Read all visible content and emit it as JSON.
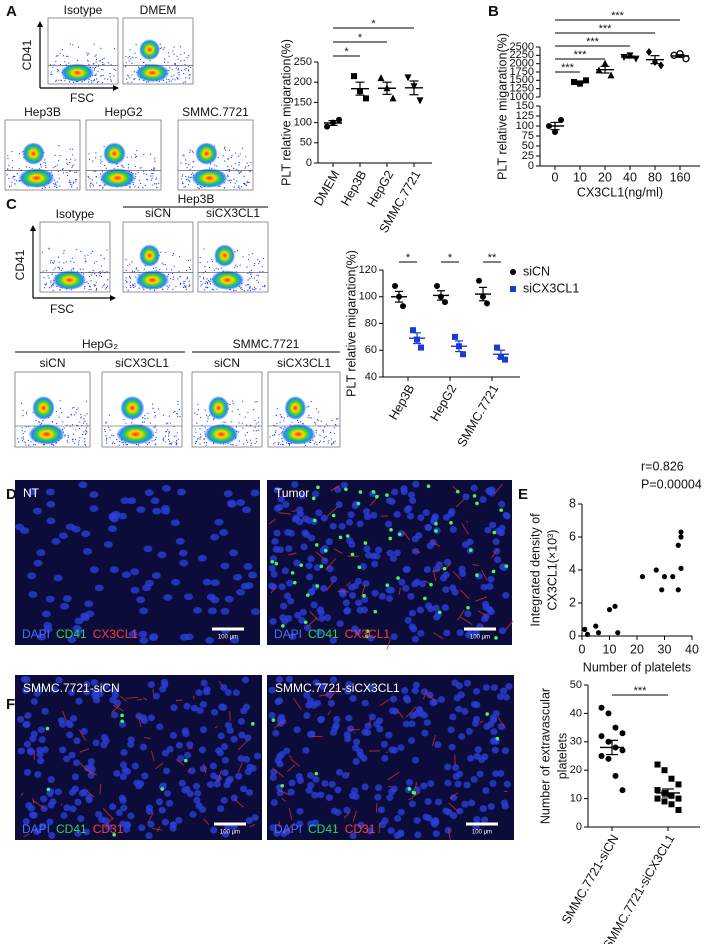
{
  "panel_labels": [
    "A",
    "B",
    "C",
    "D",
    "E",
    "F"
  ],
  "flow_a": {
    "y_axis": "CD41",
    "x_axis": "FSC",
    "plots": [
      "Isotype",
      "DMEM",
      "Hep3B",
      "HepG2",
      "SMMC.7721"
    ]
  },
  "flow_c": {
    "y_axis": "CD41",
    "x_axis": "FSC",
    "isotype": "Isotype",
    "groups": [
      {
        "name": "Hep3B",
        "plots": [
          "siCN",
          "siCX3CL1"
        ]
      },
      {
        "name": "HepG₂",
        "plots": [
          "siCN",
          "siCX3CL1"
        ]
      },
      {
        "name": "SMMC.7721",
        "plots": [
          "siCN",
          "siCX3CL1"
        ]
      }
    ]
  },
  "images_d": {
    "panels": [
      "NT",
      "Tumor"
    ],
    "stains": [
      "DAPI",
      "CD41",
      "CX3CL1"
    ],
    "scale_bar": "100 μm"
  },
  "images_f": {
    "panels": [
      "SMMC.7721-siCN",
      "SMMC.7721-siCX3CL1"
    ],
    "stains": [
      "DAPI",
      "CD41",
      "CD31"
    ],
    "scale_bar": "100 μm"
  },
  "chart_data": [
    {
      "type": "dot",
      "ylabel": "PLT relative migaration(%)",
      "categories": [
        "DMEM",
        "Hep3B",
        "HepG2",
        "SMMC.7721"
      ],
      "markers": [
        "circle",
        "square",
        "triangle",
        "triangle-down"
      ],
      "color": "#000000",
      "points": [
        [
          90,
          100,
          107
        ],
        [
          215,
          178,
          160
        ],
        [
          210,
          185,
          160
        ],
        [
          212,
          190,
          155
        ]
      ],
      "means": [
        99,
        184,
        185,
        186
      ],
      "errors": [
        6,
        16,
        15,
        17
      ],
      "ylim": [
        0,
        250
      ],
      "yticks": [
        0,
        50,
        100,
        150,
        200,
        250
      ],
      "significance": [
        "*",
        "*",
        "*"
      ]
    },
    {
      "type": "dot",
      "ylabel": "PLT relative migaration(%)",
      "xlabel": "CX3CL1(ng/ml)",
      "categories": [
        "0",
        "10",
        "20",
        "40",
        "80",
        "160"
      ],
      "markers": [
        "circle",
        "square",
        "triangle",
        "triangle-down",
        "diamond",
        "circle-open"
      ],
      "color": "#000000",
      "points": [
        [
          100,
          85,
          115
        ],
        [
          1450,
          1400,
          1500
        ],
        [
          1800,
          2000,
          1650
        ],
        [
          2200,
          2250,
          2150
        ],
        [
          2350,
          2050,
          1950
        ],
        [
          2250,
          2300,
          2150
        ]
      ],
      "means": [
        100,
        1450,
        1820,
        2200,
        2120,
        2230
      ],
      "errors": [
        9,
        30,
        100,
        30,
        120,
        40
      ],
      "ylim": [
        0,
        2500
      ],
      "ybreak": [
        150,
        1000
      ],
      "yticks": [
        0,
        25,
        50,
        75,
        100,
        125,
        150,
        1000,
        1250,
        1500,
        1750,
        2000,
        2250,
        2500
      ],
      "significance": [
        "***",
        "***",
        "***",
        "***",
        "***"
      ]
    },
    {
      "type": "grouped-dot",
      "ylabel": "PLT relative migaration(%)",
      "categories": [
        "Hep3B",
        "HepG2",
        "SMMC.7721"
      ],
      "series": [
        {
          "name": "siCN",
          "color": "#000000",
          "marker": "circle",
          "points": [
            [
              108,
              100,
              93
            ],
            [
              108,
              100,
              96
            ],
            [
              112,
              100,
              95
            ]
          ],
          "means": [
            100,
            101,
            102
          ],
          "errors": [
            4,
            3.5,
            5
          ]
        },
        {
          "name": "siCX3CL1",
          "color": "#1a3ad6",
          "marker": "square",
          "points": [
            [
              75,
              68,
              62
            ],
            [
              70,
              63,
              57
            ],
            [
              62,
              55,
              53
            ]
          ],
          "means": [
            69,
            63,
            57
          ],
          "errors": [
            4,
            4,
            3
          ]
        }
      ],
      "ylim": [
        40,
        120
      ],
      "yticks": [
        40,
        60,
        80,
        100,
        120
      ],
      "significance": [
        "*",
        "*",
        "**"
      ]
    },
    {
      "type": "scatter",
      "ylabel": [
        "Integrated density of",
        "CX3CL1(×10³)"
      ],
      "xlabel": "Number of platelets",
      "x": [
        1,
        2,
        5,
        6,
        10,
        12,
        13,
        22,
        27,
        29,
        30,
        33,
        35,
        35,
        36,
        36,
        36
      ],
      "y": [
        0.4,
        0.1,
        0.6,
        0.2,
        1.6,
        1.8,
        0.2,
        3.6,
        4,
        2.8,
        3.6,
        3.6,
        2.8,
        5.5,
        6.3,
        6,
        4.1
      ],
      "xlim": [
        0,
        40
      ],
      "xticks": [
        0,
        10,
        20,
        30,
        40
      ],
      "ylim": [
        0,
        8
      ],
      "yticks": [
        0,
        2,
        4,
        6,
        8
      ],
      "annotations": [
        "r=0.826",
        "P=0.00004"
      ]
    },
    {
      "type": "dot",
      "ylabel": [
        "Number of extravascular",
        "platelets"
      ],
      "categories": [
        "SMMC.7721-siCN",
        "SMMC.7721-siCX3CL1"
      ],
      "markers": [
        "circle",
        "square"
      ],
      "color": "#000000",
      "points": [
        [
          42,
          40,
          35,
          33,
          32,
          30,
          28,
          27,
          25,
          24,
          18,
          13
        ],
        [
          22,
          20,
          17,
          15,
          13,
          12,
          11,
          10,
          10,
          9,
          8,
          6
        ]
      ],
      "means": [
        28,
        12
      ],
      "errors": [
        2.5,
        1.4
      ],
      "ylim": [
        0,
        50
      ],
      "yticks": [
        0,
        10,
        20,
        30,
        40,
        50
      ],
      "significance": [
        "***"
      ]
    }
  ]
}
